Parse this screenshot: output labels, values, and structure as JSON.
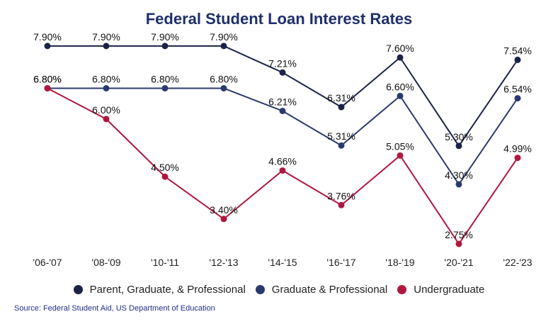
{
  "chart_data": {
    "type": "line",
    "title": "Federal Student Loan Interest Rates",
    "source": "Source: Federal Student Aid, US Department of Education",
    "categories": [
      "'06-'07",
      "'08-'09",
      "'10-'11",
      "'12-'13",
      "'14-'15",
      "'16-'17",
      "'18-'19",
      "'20-'21",
      "'22-'23"
    ],
    "series": [
      {
        "name": "Parent, Graduate, & Professional",
        "color": "#1b2347",
        "values": [
          7.9,
          7.9,
          7.9,
          7.9,
          7.21,
          6.31,
          7.6,
          5.3,
          7.54
        ],
        "labels": [
          "7.90%",
          "7.90%",
          "7.90%",
          "7.90%",
          "7.21%",
          "6.31%",
          "7.60%",
          "5.30%",
          "7.54%"
        ]
      },
      {
        "name": "Graduate & Professional",
        "color": "#2b3a6e",
        "values": [
          6.8,
          6.8,
          6.8,
          6.8,
          6.21,
          5.31,
          6.6,
          4.3,
          6.54
        ],
        "labels": [
          "6.80%",
          "6.80%",
          "6.80%",
          "6.80%",
          "6.21%",
          "5.31%",
          "6.60%",
          "4.30%",
          "6.54%"
        ]
      },
      {
        "name": "Undergraduate",
        "color": "#b0173f",
        "values": [
          6.8,
          6.0,
          4.5,
          3.4,
          4.66,
          3.76,
          5.05,
          2.75,
          4.99
        ],
        "labels": [
          "6.80%",
          "6.00%",
          "4.50%",
          "3.40%",
          "4.66%",
          "3.76%",
          "5.05%",
          "2.75%",
          "4.99%"
        ]
      }
    ],
    "grid": false,
    "legend_position": "bottom"
  }
}
